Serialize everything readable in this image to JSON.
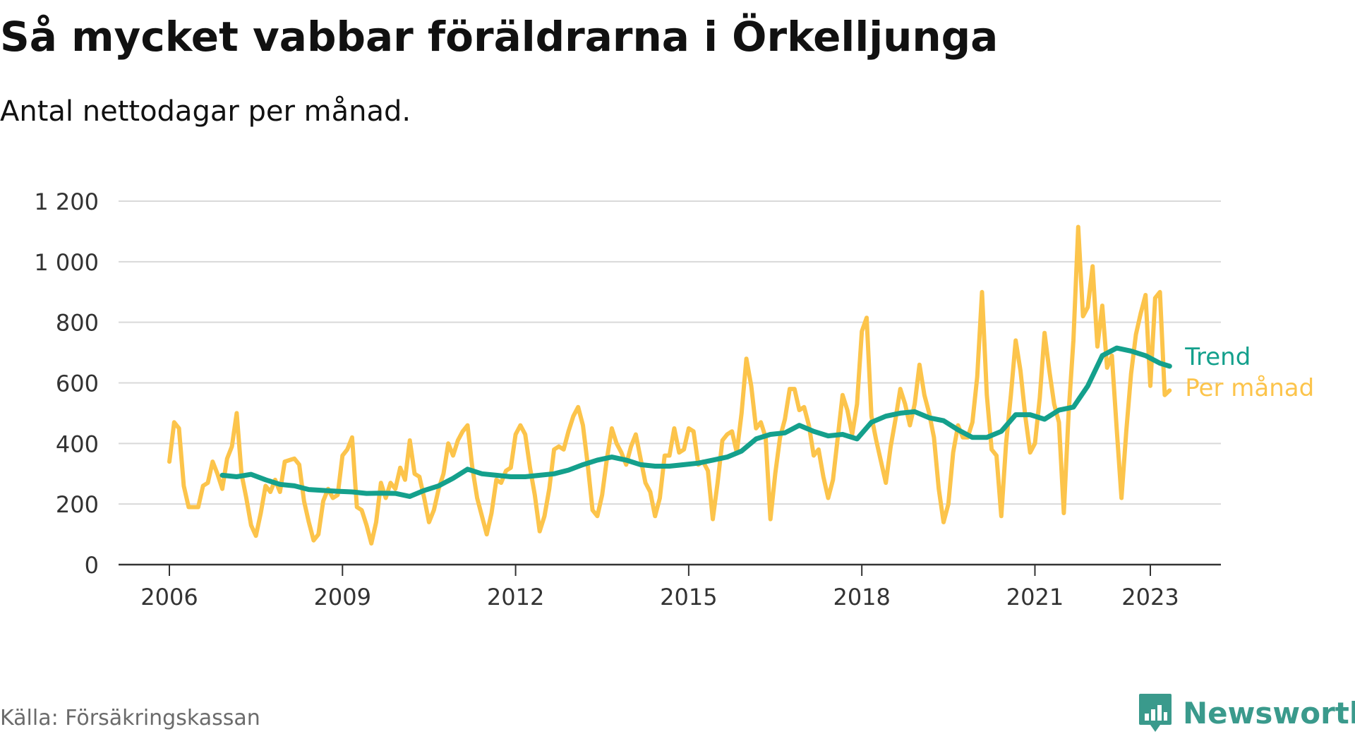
{
  "header": {
    "title": "Så mycket vabbar föräldrarna i Örkelljunga",
    "subtitle": "Antal nettodagar per månad."
  },
  "footer": {
    "source": "Källa: Försäkringskassan",
    "brand": "Newsworthy"
  },
  "colors": {
    "monthly": "#fcc44b",
    "trend": "#14a08c",
    "grid": "#d9d9d9",
    "axis": "#333333",
    "brand": "#3a9a8c"
  },
  "chart_data": {
    "type": "line",
    "title": "Så mycket vabbar föräldrarna i Örkelljunga",
    "subtitle": "Antal nettodagar per månad.",
    "ylim": [
      0,
      1200
    ],
    "yticks": [
      0,
      200,
      400,
      600,
      800,
      1000,
      1200
    ],
    "ytick_labels": [
      "0",
      "200",
      "400",
      "600",
      "800",
      "1 000",
      "1 200"
    ],
    "xlim": [
      "2006-01",
      "2024-06"
    ],
    "xticks": [
      "2006-01",
      "2009-01",
      "2012-01",
      "2015-01",
      "2018-01",
      "2021-01",
      "2023-01"
    ],
    "xtick_labels": [
      "2006",
      "2009",
      "2012",
      "2015",
      "2018",
      "2021",
      "2023"
    ],
    "grid": true,
    "legend": "direct labels at line ends (right)",
    "series": [
      {
        "name": "Per månad",
        "color": "#fcc44b",
        "points": [
          [
            "2006-01",
            340
          ],
          [
            "2006-02",
            470
          ],
          [
            "2006-03",
            450
          ],
          [
            "2006-04",
            260
          ],
          [
            "2006-05",
            190
          ],
          [
            "2006-06",
            190
          ],
          [
            "2006-07",
            190
          ],
          [
            "2006-08",
            260
          ],
          [
            "2006-09",
            270
          ],
          [
            "2006-10",
            340
          ],
          [
            "2006-11",
            300
          ],
          [
            "2006-12",
            250
          ],
          [
            "2007-01",
            350
          ],
          [
            "2007-02",
            390
          ],
          [
            "2007-03",
            500
          ],
          [
            "2007-04",
            300
          ],
          [
            "2007-05",
            220
          ],
          [
            "2007-06",
            130
          ],
          [
            "2007-07",
            95
          ],
          [
            "2007-08",
            170
          ],
          [
            "2007-09",
            260
          ],
          [
            "2007-10",
            240
          ],
          [
            "2007-11",
            280
          ],
          [
            "2007-12",
            240
          ],
          [
            "2008-01",
            340
          ],
          [
            "2008-02",
            345
          ],
          [
            "2008-03",
            350
          ],
          [
            "2008-04",
            330
          ],
          [
            "2008-05",
            210
          ],
          [
            "2008-06",
            140
          ],
          [
            "2008-07",
            80
          ],
          [
            "2008-08",
            100
          ],
          [
            "2008-09",
            210
          ],
          [
            "2008-10",
            250
          ],
          [
            "2008-11",
            220
          ],
          [
            "2008-12",
            230
          ],
          [
            "2009-01",
            360
          ],
          [
            "2009-02",
            380
          ],
          [
            "2009-03",
            420
          ],
          [
            "2009-04",
            190
          ],
          [
            "2009-05",
            180
          ],
          [
            "2009-06",
            130
          ],
          [
            "2009-07",
            70
          ],
          [
            "2009-08",
            140
          ],
          [
            "2009-09",
            270
          ],
          [
            "2009-10",
            220
          ],
          [
            "2009-11",
            270
          ],
          [
            "2009-12",
            250
          ],
          [
            "2010-01",
            320
          ],
          [
            "2010-02",
            280
          ],
          [
            "2010-03",
            410
          ],
          [
            "2010-04",
            300
          ],
          [
            "2010-05",
            290
          ],
          [
            "2010-06",
            220
          ],
          [
            "2010-07",
            140
          ],
          [
            "2010-08",
            180
          ],
          [
            "2010-09",
            250
          ],
          [
            "2010-10",
            300
          ],
          [
            "2010-11",
            400
          ],
          [
            "2010-12",
            360
          ],
          [
            "2011-01",
            410
          ],
          [
            "2011-02",
            440
          ],
          [
            "2011-03",
            460
          ],
          [
            "2011-04",
            320
          ],
          [
            "2011-05",
            220
          ],
          [
            "2011-06",
            160
          ],
          [
            "2011-07",
            100
          ],
          [
            "2011-08",
            170
          ],
          [
            "2011-09",
            280
          ],
          [
            "2011-10",
            270
          ],
          [
            "2011-11",
            310
          ],
          [
            "2011-12",
            320
          ],
          [
            "2012-01",
            430
          ],
          [
            "2012-02",
            460
          ],
          [
            "2012-03",
            430
          ],
          [
            "2012-04",
            320
          ],
          [
            "2012-05",
            230
          ],
          [
            "2012-06",
            110
          ],
          [
            "2012-07",
            160
          ],
          [
            "2012-08",
            250
          ],
          [
            "2012-09",
            380
          ],
          [
            "2012-10",
            390
          ],
          [
            "2012-11",
            380
          ],
          [
            "2012-12",
            440
          ],
          [
            "2013-01",
            490
          ],
          [
            "2013-02",
            520
          ],
          [
            "2013-03",
            460
          ],
          [
            "2013-04",
            330
          ],
          [
            "2013-05",
            180
          ],
          [
            "2013-06",
            160
          ],
          [
            "2013-07",
            230
          ],
          [
            "2013-08",
            350
          ],
          [
            "2013-09",
            450
          ],
          [
            "2013-10",
            400
          ],
          [
            "2013-11",
            370
          ],
          [
            "2013-12",
            330
          ],
          [
            "2014-01",
            390
          ],
          [
            "2014-02",
            430
          ],
          [
            "2014-03",
            350
          ],
          [
            "2014-04",
            270
          ],
          [
            "2014-05",
            240
          ],
          [
            "2014-06",
            160
          ],
          [
            "2014-07",
            220
          ],
          [
            "2014-08",
            360
          ],
          [
            "2014-09",
            360
          ],
          [
            "2014-10",
            450
          ],
          [
            "2014-11",
            370
          ],
          [
            "2014-12",
            380
          ],
          [
            "2015-01",
            450
          ],
          [
            "2015-02",
            440
          ],
          [
            "2015-03",
            330
          ],
          [
            "2015-04",
            340
          ],
          [
            "2015-05",
            310
          ],
          [
            "2015-06",
            150
          ],
          [
            "2015-07",
            270
          ],
          [
            "2015-08",
            410
          ],
          [
            "2015-09",
            430
          ],
          [
            "2015-10",
            440
          ],
          [
            "2015-11",
            370
          ],
          [
            "2015-12",
            500
          ],
          [
            "2016-01",
            680
          ],
          [
            "2016-02",
            590
          ],
          [
            "2016-03",
            450
          ],
          [
            "2016-04",
            470
          ],
          [
            "2016-05",
            420
          ],
          [
            "2016-06",
            150
          ],
          [
            "2016-07",
            300
          ],
          [
            "2016-08",
            420
          ],
          [
            "2016-09",
            480
          ],
          [
            "2016-10",
            580
          ],
          [
            "2016-11",
            580
          ],
          [
            "2016-12",
            510
          ],
          [
            "2017-01",
            520
          ],
          [
            "2017-02",
            460
          ],
          [
            "2017-03",
            360
          ],
          [
            "2017-04",
            380
          ],
          [
            "2017-05",
            290
          ],
          [
            "2017-06",
            220
          ],
          [
            "2017-07",
            280
          ],
          [
            "2017-08",
            420
          ],
          [
            "2017-09",
            560
          ],
          [
            "2017-10",
            510
          ],
          [
            "2017-11",
            430
          ],
          [
            "2017-12",
            530
          ],
          [
            "2018-01",
            770
          ],
          [
            "2018-02",
            815
          ],
          [
            "2018-03",
            490
          ],
          [
            "2018-04",
            410
          ],
          [
            "2018-05",
            340
          ],
          [
            "2018-06",
            270
          ],
          [
            "2018-07",
            390
          ],
          [
            "2018-08",
            480
          ],
          [
            "2018-09",
            580
          ],
          [
            "2018-10",
            530
          ],
          [
            "2018-11",
            460
          ],
          [
            "2018-12",
            530
          ],
          [
            "2019-01",
            660
          ],
          [
            "2019-02",
            560
          ],
          [
            "2019-03",
            500
          ],
          [
            "2019-04",
            420
          ],
          [
            "2019-05",
            250
          ],
          [
            "2019-06",
            140
          ],
          [
            "2019-07",
            200
          ],
          [
            "2019-08",
            370
          ],
          [
            "2019-09",
            460
          ],
          [
            "2019-10",
            420
          ],
          [
            "2019-11",
            420
          ],
          [
            "2019-12",
            470
          ],
          [
            "2020-01",
            620
          ],
          [
            "2020-02",
            900
          ],
          [
            "2020-03",
            560
          ],
          [
            "2020-04",
            380
          ],
          [
            "2020-05",
            360
          ],
          [
            "2020-06",
            160
          ],
          [
            "2020-07",
            400
          ],
          [
            "2020-08",
            560
          ],
          [
            "2020-09",
            740
          ],
          [
            "2020-10",
            640
          ],
          [
            "2020-11",
            490
          ],
          [
            "2020-12",
            370
          ],
          [
            "2021-01",
            400
          ],
          [
            "2021-02",
            550
          ],
          [
            "2021-03",
            765
          ],
          [
            "2021-04",
            640
          ],
          [
            "2021-05",
            530
          ],
          [
            "2021-06",
            470
          ],
          [
            "2021-07",
            170
          ],
          [
            "2021-08",
            500
          ],
          [
            "2021-09",
            740
          ],
          [
            "2021-10",
            1115
          ],
          [
            "2021-11",
            820
          ],
          [
            "2021-12",
            850
          ],
          [
            "2022-01",
            985
          ],
          [
            "2022-02",
            720
          ],
          [
            "2022-03",
            855
          ],
          [
            "2022-04",
            650
          ],
          [
            "2022-05",
            690
          ],
          [
            "2022-06",
            450
          ],
          [
            "2022-07",
            220
          ],
          [
            "2022-08",
            440
          ],
          [
            "2022-09",
            630
          ],
          [
            "2022-10",
            760
          ],
          [
            "2022-11",
            830
          ],
          [
            "2022-12",
            890
          ],
          [
            "2023-01",
            590
          ],
          [
            "2023-02",
            880
          ],
          [
            "2023-03",
            900
          ],
          [
            "2023-04",
            560
          ],
          [
            "2023-05",
            575
          ]
        ]
      },
      {
        "name": "Trend",
        "color": "#14a08c",
        "points": [
          [
            "2006-12",
            295
          ],
          [
            "2007-03",
            290
          ],
          [
            "2007-06",
            298
          ],
          [
            "2007-09",
            280
          ],
          [
            "2007-12",
            265
          ],
          [
            "2008-03",
            260
          ],
          [
            "2008-06",
            248
          ],
          [
            "2008-09",
            245
          ],
          [
            "2008-12",
            242
          ],
          [
            "2009-03",
            240
          ],
          [
            "2009-06",
            235
          ],
          [
            "2009-09",
            236
          ],
          [
            "2009-12",
            235
          ],
          [
            "2010-03",
            225
          ],
          [
            "2010-06",
            245
          ],
          [
            "2010-09",
            260
          ],
          [
            "2010-12",
            285
          ],
          [
            "2011-03",
            315
          ],
          [
            "2011-06",
            300
          ],
          [
            "2011-09",
            295
          ],
          [
            "2011-12",
            290
          ],
          [
            "2012-03",
            290
          ],
          [
            "2012-06",
            295
          ],
          [
            "2012-09",
            300
          ],
          [
            "2012-12",
            312
          ],
          [
            "2013-03",
            330
          ],
          [
            "2013-06",
            345
          ],
          [
            "2013-09",
            355
          ],
          [
            "2013-12",
            345
          ],
          [
            "2014-03",
            330
          ],
          [
            "2014-06",
            325
          ],
          [
            "2014-09",
            325
          ],
          [
            "2014-12",
            330
          ],
          [
            "2015-03",
            335
          ],
          [
            "2015-06",
            345
          ],
          [
            "2015-09",
            355
          ],
          [
            "2015-12",
            375
          ],
          [
            "2016-03",
            415
          ],
          [
            "2016-06",
            430
          ],
          [
            "2016-09",
            435
          ],
          [
            "2016-12",
            460
          ],
          [
            "2017-03",
            440
          ],
          [
            "2017-06",
            425
          ],
          [
            "2017-09",
            430
          ],
          [
            "2017-12",
            415
          ],
          [
            "2018-03",
            470
          ],
          [
            "2018-06",
            490
          ],
          [
            "2018-09",
            500
          ],
          [
            "2018-12",
            505
          ],
          [
            "2019-03",
            485
          ],
          [
            "2019-06",
            475
          ],
          [
            "2019-09",
            445
          ],
          [
            "2019-12",
            420
          ],
          [
            "2020-03",
            420
          ],
          [
            "2020-06",
            440
          ],
          [
            "2020-09",
            495
          ],
          [
            "2020-12",
            495
          ],
          [
            "2021-03",
            480
          ],
          [
            "2021-06",
            510
          ],
          [
            "2021-09",
            520
          ],
          [
            "2021-12",
            590
          ],
          [
            "2022-03",
            690
          ],
          [
            "2022-06",
            715
          ],
          [
            "2022-09",
            705
          ],
          [
            "2022-12",
            690
          ],
          [
            "2023-03",
            665
          ],
          [
            "2023-05",
            655
          ]
        ]
      }
    ]
  }
}
